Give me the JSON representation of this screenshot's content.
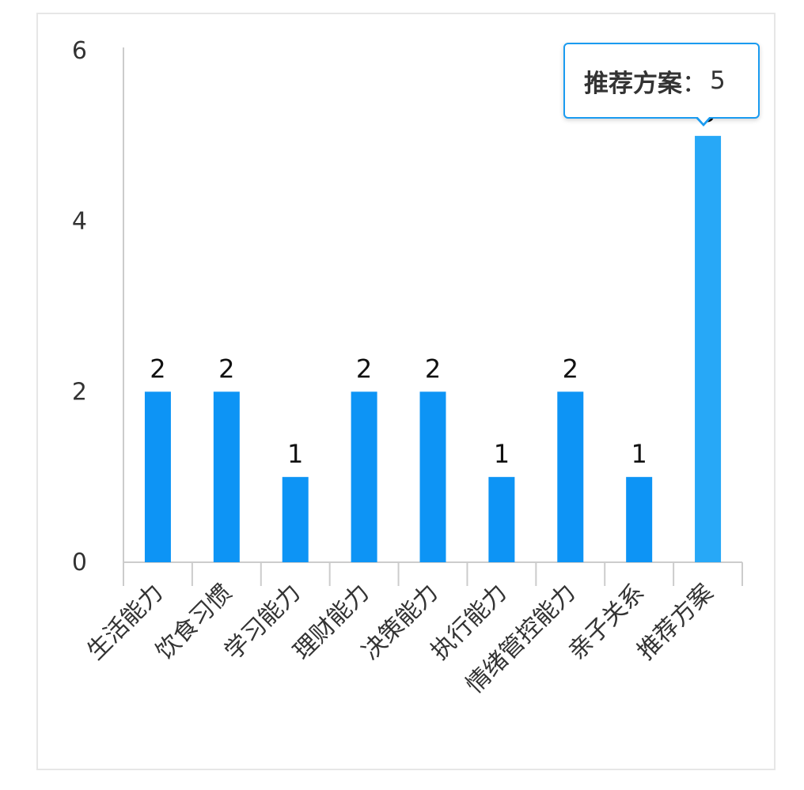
{
  "chart_data": {
    "type": "bar",
    "categories": [
      "生活能力",
      "饮食习惯",
      "学习能力",
      "理财能力",
      "决策能力",
      "执行能力",
      "情绪管控能力",
      "亲子关系",
      "推荐方案"
    ],
    "values": [
      2,
      2,
      1,
      2,
      2,
      1,
      2,
      1,
      5
    ],
    "ylim": [
      0,
      6
    ],
    "yticks": [
      0,
      2,
      4,
      6
    ],
    "data_labels": [
      "2",
      "2",
      "1",
      "2",
      "2",
      "1",
      "2",
      "1",
      "5"
    ],
    "grid": false,
    "legend": "none",
    "colors": {
      "bar": "#0d94f5",
      "bar_highlight": "#27a8f7",
      "axis": "#cccccc",
      "text": "#333333",
      "tooltip_border": "#1a9bf0"
    },
    "highlighted_index": 8
  },
  "tooltip": {
    "name": "推荐方案",
    "separator": "：",
    "value": "5"
  }
}
